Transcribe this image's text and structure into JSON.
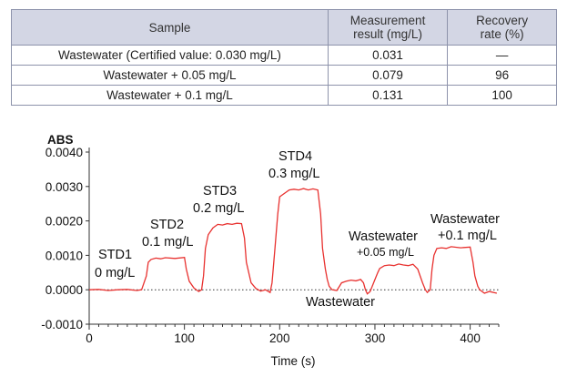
{
  "table": {
    "headers": [
      "Sample",
      "Measurement result (mg/L)",
      "Recovery rate (%)"
    ],
    "header_lines": [
      [
        "Sample"
      ],
      [
        "Measurement",
        "result (mg/L)"
      ],
      [
        "Recovery",
        "rate (%)"
      ]
    ],
    "rows": [
      [
        "Wastewater (Certified value: 0.030 mg/L)",
        "0.031",
        "—"
      ],
      [
        "Wastewater + 0.05 mg/L",
        "0.079",
        "96"
      ],
      [
        "Wastewater + 0.1 mg/L",
        "0.131",
        "100"
      ]
    ]
  },
  "chart_data": {
    "type": "line",
    "ylabel": "ABS",
    "xlabel": "Time (s)",
    "xlim": [
      0,
      430
    ],
    "ylim": [
      -0.001,
      0.004
    ],
    "x_ticks": [
      0,
      100,
      200,
      300,
      400
    ],
    "y_ticks": [
      "0.0040",
      "0.0030",
      "0.0020",
      "0.0010",
      "0.0000",
      "-0.0010"
    ],
    "y_tick_values": [
      0.004,
      0.003,
      0.002,
      0.001,
      0.0,
      -0.001
    ],
    "line_color": "#e8312f",
    "series": [
      {
        "name": "absorbance",
        "x": [
          0,
          10,
          20,
          30,
          40,
          50,
          55,
          60,
          62,
          65,
          70,
          75,
          80,
          90,
          100,
          102,
          105,
          110,
          115,
          118,
          120,
          122,
          125,
          130,
          135,
          140,
          145,
          150,
          155,
          160,
          163,
          165,
          170,
          175,
          180,
          185,
          190,
          192,
          195,
          198,
          200,
          205,
          210,
          215,
          220,
          225,
          230,
          235,
          240,
          243,
          245,
          248,
          250,
          252,
          255,
          260,
          265,
          270,
          275,
          280,
          285,
          288,
          290,
          292,
          295,
          300,
          303,
          305,
          310,
          315,
          320,
          325,
          330,
          335,
          340,
          345,
          350,
          353,
          355,
          358,
          360,
          362,
          365,
          370,
          375,
          380,
          390,
          400,
          403,
          405,
          408,
          410,
          415,
          420,
          428
        ],
        "y": [
          0.0,
          1e-05,
          -2e-05,
          0.0,
          1e-05,
          -2e-05,
          0.0,
          0.0004,
          0.0008,
          0.00088,
          0.00092,
          0.0009,
          0.00093,
          0.00091,
          0.00094,
          0.0006,
          0.00025,
          5e-05,
          -5e-05,
          0.0,
          0.0004,
          0.0012,
          0.0016,
          0.0018,
          0.0019,
          0.00188,
          0.00192,
          0.0019,
          0.00193,
          0.00192,
          0.0015,
          0.0008,
          0.0002,
          4e-05,
          -4e-05,
          0.0,
          -8e-05,
          0.0002,
          0.0012,
          0.0022,
          0.0027,
          0.0028,
          0.0029,
          0.00292,
          0.0029,
          0.00294,
          0.0029,
          0.00293,
          0.0029,
          0.0022,
          0.0012,
          0.0006,
          0.0003,
          0.0001,
          0.0,
          -2e-05,
          0.0002,
          0.00025,
          0.00028,
          0.00026,
          0.0003,
          0.0002,
          0.0,
          -0.00012,
          -5e-05,
          0.0003,
          0.0005,
          0.00062,
          0.0007,
          0.00072,
          0.0007,
          0.00075,
          0.00072,
          0.0007,
          0.00074,
          0.0006,
          0.0002,
          0.0,
          -8e-05,
          0.0,
          0.0006,
          0.001,
          0.0012,
          0.00122,
          0.0012,
          0.00125,
          0.00122,
          0.00124,
          0.0008,
          0.0004,
          0.0001,
          0.0,
          -0.0001,
          -5e-05,
          -0.0001
        ]
      }
    ],
    "annotations": [
      {
        "lines": [
          "STD1",
          "0 mg/L"
        ],
        "size": "normal"
      },
      {
        "lines": [
          "STD2",
          "0.1 mg/L"
        ],
        "size": "normal"
      },
      {
        "lines": [
          "STD3",
          "0.2 mg/L"
        ],
        "size": "normal"
      },
      {
        "lines": [
          "STD4",
          "0.3 mg/L"
        ],
        "size": "normal"
      },
      {
        "lines": [
          "Wastewater",
          "+0.05 mg/L"
        ],
        "size": "mixed"
      },
      {
        "lines": [
          "Wastewater",
          "+0.1 mg/L"
        ],
        "size": "normal"
      },
      {
        "lines": [
          "Wastewater"
        ],
        "size": "normal"
      }
    ]
  }
}
